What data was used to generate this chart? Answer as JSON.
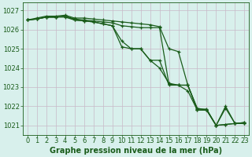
{
  "title": "Graphe pression niveau de la mer (hPa)",
  "bg_color": "#d8f0ec",
  "grid_color": "#c8b8c8",
  "line_color": "#1a5c1a",
  "xlim": [
    -0.5,
    23.5
  ],
  "ylim": [
    1020.5,
    1027.4
  ],
  "yticks": [
    1021,
    1022,
    1023,
    1024,
    1025,
    1026,
    1027
  ],
  "xticks": [
    0,
    1,
    2,
    3,
    4,
    5,
    6,
    7,
    8,
    9,
    10,
    11,
    12,
    13,
    14,
    15,
    16,
    17,
    18,
    19,
    20,
    21,
    22,
    23
  ],
  "series": [
    [
      1026.5,
      1026.6,
      1026.7,
      1026.7,
      1026.75,
      1026.6,
      1026.6,
      1026.55,
      1026.5,
      1026.45,
      1026.4,
      1026.35,
      1026.3,
      1026.25,
      1026.15,
      1025.0,
      1024.85,
      1023.1,
      1021.8,
      1021.8,
      1021.0,
      1021.05,
      1021.1,
      1021.1
    ],
    [
      1026.5,
      1026.55,
      1026.65,
      1026.65,
      1026.65,
      1026.5,
      1026.45,
      1026.4,
      1026.3,
      1026.2,
      1025.1,
      1025.0,
      1025.0,
      1024.4,
      1024.4,
      1023.1,
      1023.1,
      1022.8,
      1021.8,
      1021.8,
      1021.0,
      1021.9,
      1021.1,
      1021.15
    ],
    [
      1026.5,
      1026.55,
      1026.65,
      1026.65,
      1026.7,
      1026.5,
      1026.45,
      1026.4,
      1026.3,
      1026.2,
      1025.4,
      1025.0,
      1025.0,
      1024.4,
      1024.0,
      1023.2,
      1023.1,
      1023.1,
      1021.9,
      1021.8,
      1021.0,
      1022.0,
      1021.1,
      1021.15
    ],
    [
      1026.5,
      1026.55,
      1026.65,
      1026.65,
      1026.7,
      1026.55,
      1026.5,
      1026.45,
      1026.4,
      1026.35,
      1026.2,
      1026.15,
      1026.1,
      1026.1,
      1026.1,
      1023.15,
      1023.1,
      1023.1,
      1021.85,
      1021.85,
      1021.0,
      1021.05,
      1021.1,
      1021.1
    ]
  ],
  "marker_series": [
    0,
    1,
    2,
    3
  ],
  "font_size_label": 7,
  "font_size_tick": 6,
  "tick_label_color": "#1a5c1a"
}
